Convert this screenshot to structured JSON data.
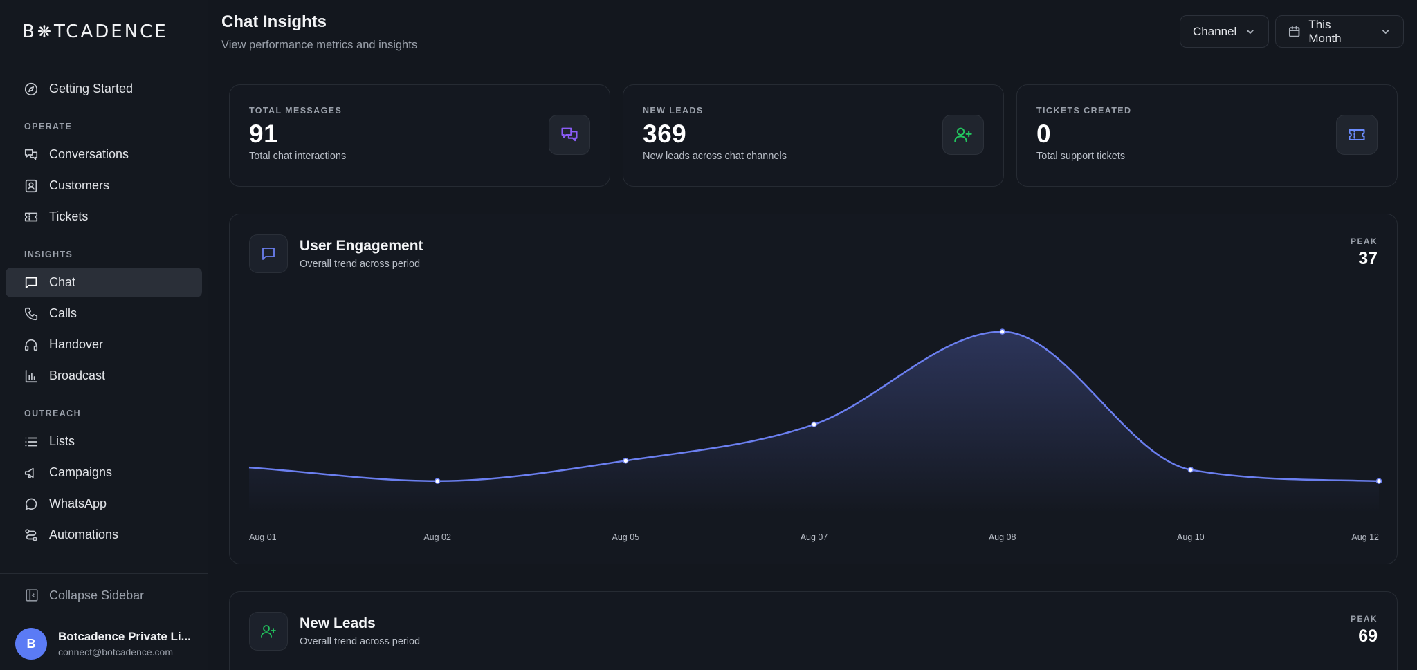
{
  "brand": {
    "name_pre": "B",
    "name_post": "TCADENCE"
  },
  "sidebar": {
    "top_item": {
      "label": "Getting Started",
      "icon": "compass-icon"
    },
    "sections": [
      {
        "label": "OPERATE",
        "items": [
          {
            "label": "Conversations",
            "icon": "chats-icon"
          },
          {
            "label": "Customers",
            "icon": "contact-icon"
          },
          {
            "label": "Tickets",
            "icon": "ticket-icon"
          }
        ]
      },
      {
        "label": "INSIGHTS",
        "items": [
          {
            "label": "Chat",
            "icon": "chat-icon",
            "active": true
          },
          {
            "label": "Calls",
            "icon": "phone-icon"
          },
          {
            "label": "Handover",
            "icon": "headset-icon"
          },
          {
            "label": "Broadcast",
            "icon": "bar-chart-icon"
          }
        ]
      },
      {
        "label": "OUTREACH",
        "items": [
          {
            "label": "Lists",
            "icon": "list-icon"
          },
          {
            "label": "Campaigns",
            "icon": "megaphone-icon"
          },
          {
            "label": "WhatsApp",
            "icon": "whatsapp-icon"
          },
          {
            "label": "Automations",
            "icon": "automation-icon"
          }
        ]
      }
    ],
    "collapse_label": "Collapse Sidebar",
    "user": {
      "initial": "B",
      "name": "Botcadence Private Li...",
      "email": "connect@botcadence.com"
    }
  },
  "header": {
    "title": "Chat Insights",
    "subtitle": "View performance metrics and insights",
    "channel_filter": "Channel",
    "date_filter": "This Month"
  },
  "stats": [
    {
      "label": "TOTAL MESSAGES",
      "value": "91",
      "desc": "Total chat interactions",
      "icon": "chats-icon",
      "color": "#8b5cf6"
    },
    {
      "label": "NEW LEADS",
      "value": "369",
      "desc": "New leads across chat channels",
      "icon": "user-plus-icon",
      "color": "#22c55e"
    },
    {
      "label": "TICKETS CREATED",
      "value": "0",
      "desc": "Total support tickets",
      "icon": "ticket-icon",
      "color": "#6b8cff"
    }
  ],
  "charts": {
    "engagement": {
      "title": "User Engagement",
      "subtitle": "Overall trend across period",
      "peak_label": "PEAK",
      "peak_value": "37",
      "icon": "chat-icon",
      "color": "#6b7ff0"
    },
    "leads": {
      "title": "New Leads",
      "subtitle": "Overall trend across period",
      "peak_label": "PEAK",
      "peak_value": "69",
      "icon": "user-plus-icon",
      "color": "#22c55e"
    }
  },
  "chart_data": {
    "type": "area",
    "title": "User Engagement",
    "x": [
      "Aug 01",
      "Aug 02",
      "Aug 05",
      "Aug 07",
      "Aug 08",
      "Aug 10",
      "Aug 12"
    ],
    "series": [
      {
        "values": [
          7,
          4,
          8.5,
          16.5,
          37,
          6.5,
          4
        ]
      }
    ],
    "ylim": [
      0,
      40
    ],
    "grid": false,
    "color": "#6b7ff0"
  }
}
